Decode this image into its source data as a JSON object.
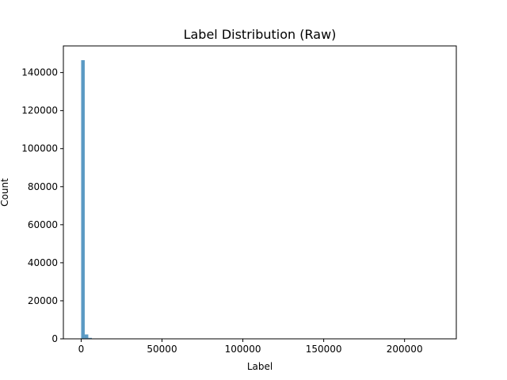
{
  "chart_data": {
    "type": "bar",
    "title": "Label Distribution (Raw)",
    "xlabel": "Label",
    "ylabel": "Count",
    "xlim": [
      -11000,
      232000
    ],
    "ylim": [
      0,
      154000
    ],
    "x_ticks": [
      0,
      50000,
      100000,
      150000,
      200000
    ],
    "x_tick_labels": [
      "0",
      "50000",
      "100000",
      "150000",
      "200000"
    ],
    "y_ticks": [
      0,
      20000,
      40000,
      60000,
      80000,
      100000,
      120000,
      140000
    ],
    "y_tick_labels": [
      "0",
      "20000",
      "40000",
      "60000",
      "80000",
      "100000",
      "120000",
      "140000"
    ],
    "bin_width": 2210,
    "bins": [
      {
        "x0": 0,
        "x1": 2210,
        "count": 146500
      },
      {
        "x0": 2210,
        "x1": 4420,
        "count": 2300
      },
      {
        "x0": 4420,
        "x1": 6630,
        "count": 500
      },
      {
        "x0": 6630,
        "x1": 8840,
        "count": 150
      }
    ],
    "bar_color": "#5b9ac4",
    "grid": false,
    "legend": "none"
  }
}
